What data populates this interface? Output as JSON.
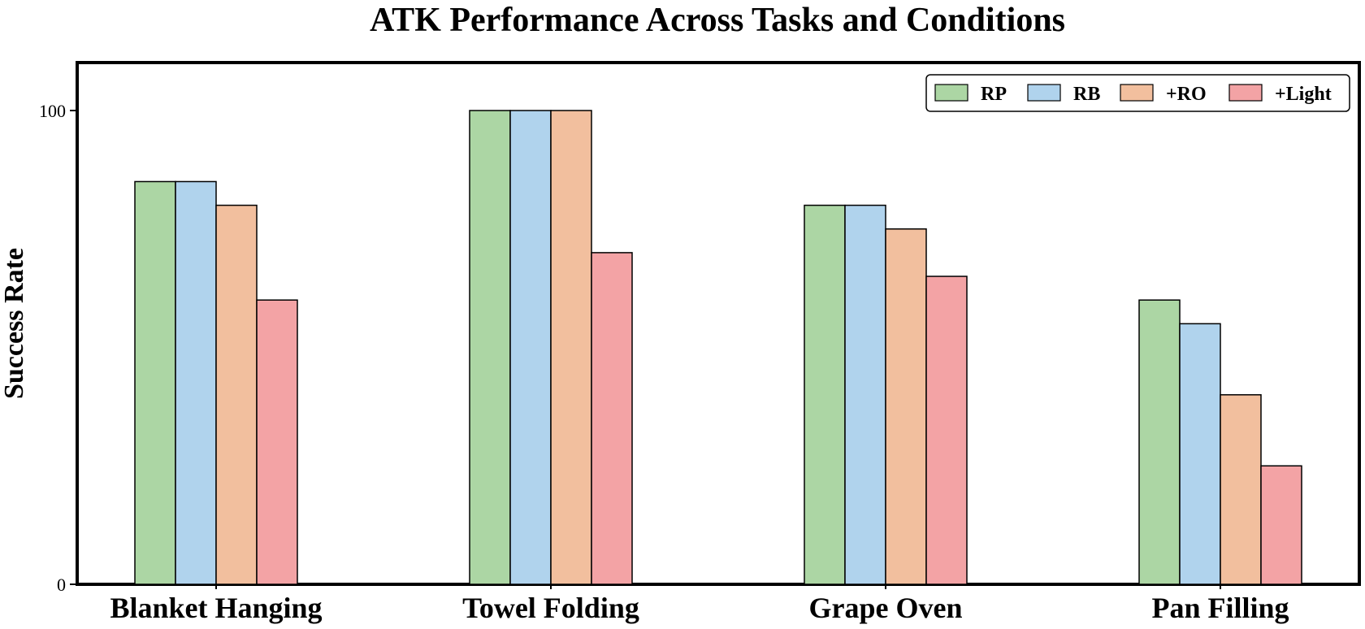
{
  "chart_data": {
    "type": "bar",
    "title": "ATK Performance Across Tasks and Conditions",
    "xlabel": "",
    "ylabel": "Success Rate",
    "ylim": [
      0,
      100
    ],
    "yticks": [
      0,
      100
    ],
    "categories": [
      "Blanket Hanging",
      "Towel Folding",
      "Grape Oven",
      "Pan Filling"
    ],
    "series": [
      {
        "name": "RP",
        "color": "#acd6a4",
        "values": [
          85,
          100,
          80,
          60
        ]
      },
      {
        "name": "RB",
        "color": "#b0d3ed",
        "values": [
          85,
          100,
          80,
          55
        ]
      },
      {
        "name": "+RO",
        "color": "#f2bf9e",
        "values": [
          80,
          100,
          75,
          40
        ]
      },
      {
        "name": "+Light",
        "color": "#f3a3a5",
        "values": [
          60,
          70,
          65,
          25
        ]
      }
    ],
    "grid": false,
    "legend_position": "top-right"
  }
}
